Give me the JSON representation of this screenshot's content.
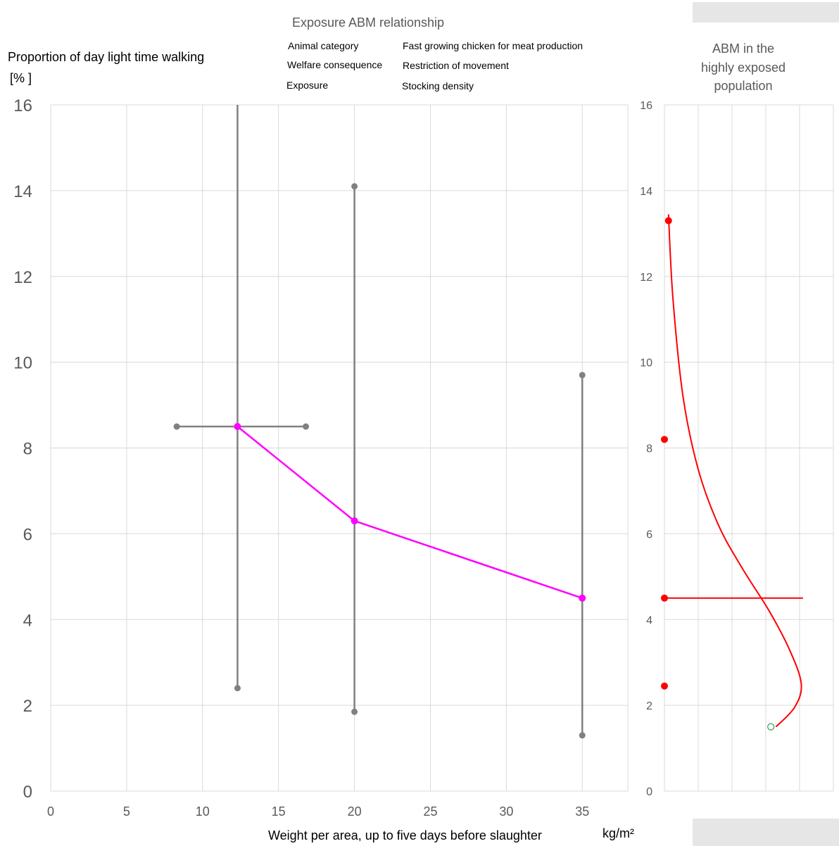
{
  "header": {
    "title": "Exposure ABM relationship",
    "fields": [
      {
        "label": "Animal category",
        "value": "Fast growing chicken for meat production"
      },
      {
        "label": "Welfare consequence",
        "value": "Restriction of movement"
      },
      {
        "label": "Exposure",
        "value": "Stocking density"
      }
    ]
  },
  "colors": {
    "grid": "#d9d9d9",
    "errorbar": "#808080",
    "main_line": "#ff00ff",
    "distribution": "#ff0000",
    "start_marker": "#2e9e4f",
    "placeholder_box": "#e6e6e6"
  },
  "chart_data": [
    {
      "type": "scatter",
      "ylabel_line1": "Proportion of day light time walking",
      "ylabel_line2": "[% ]",
      "xlabel": "Weight per area, up to five days before slaughter",
      "xunit": "kg/m²",
      "xlim": [
        0,
        38
      ],
      "ylim": [
        0,
        16
      ],
      "xticks": [
        0,
        5,
        10,
        15,
        20,
        25,
        30,
        35
      ],
      "yticks": [
        0,
        2,
        4,
        6,
        8,
        10,
        12,
        14,
        16
      ],
      "grid": true,
      "series": [
        {
          "points": [
            {
              "x": 12.3,
              "y": 8.5
            },
            {
              "x": 20,
              "y": 6.3
            },
            {
              "x": 35,
              "y": 4.5
            }
          ]
        }
      ],
      "error_bars": [
        {
          "x": 12.3,
          "y": 8.5,
          "y_low": 2.4,
          "y_high": 16,
          "x_low": 8.3,
          "x_high": 16.8
        },
        {
          "x": 20,
          "y": 6.3,
          "y_low": 1.85,
          "y_high": 14.1
        },
        {
          "x": 35,
          "y": 4.5,
          "y_low": 1.3,
          "y_high": 9.7
        }
      ]
    },
    {
      "type": "line",
      "title_lines": [
        "ABM in the",
        "highly exposed",
        "population"
      ],
      "ylim": [
        0,
        16
      ],
      "yticks": [
        0,
        2,
        4,
        6,
        8,
        10,
        12,
        14,
        16
      ],
      "xlim": [
        0,
        5
      ],
      "grid": true,
      "reference_points": [
        {
          "x": 0.12,
          "y": 13.3
        },
        {
          "x": 0,
          "y": 8.2
        },
        {
          "x": 0,
          "y": 4.5
        },
        {
          "x": 0,
          "y": 2.45
        }
      ],
      "horizontal_line": {
        "y": 4.5,
        "x_start": 0,
        "x_end": 4.1
      },
      "distribution_curve": [
        {
          "x": 0.12,
          "y": 13.45
        },
        {
          "x": 0.25,
          "y": 11.5
        },
        {
          "x": 0.55,
          "y": 9.2
        },
        {
          "x": 1.0,
          "y": 7.5
        },
        {
          "x": 1.6,
          "y": 6.2
        },
        {
          "x": 2.3,
          "y": 5.2
        },
        {
          "x": 3.1,
          "y": 4.2
        },
        {
          "x": 3.7,
          "y": 3.3
        },
        {
          "x": 4.05,
          "y": 2.5
        },
        {
          "x": 3.85,
          "y": 1.95
        },
        {
          "x": 3.3,
          "y": 1.5
        }
      ],
      "start_point": {
        "x": 3.15,
        "y": 1.5
      }
    }
  ]
}
